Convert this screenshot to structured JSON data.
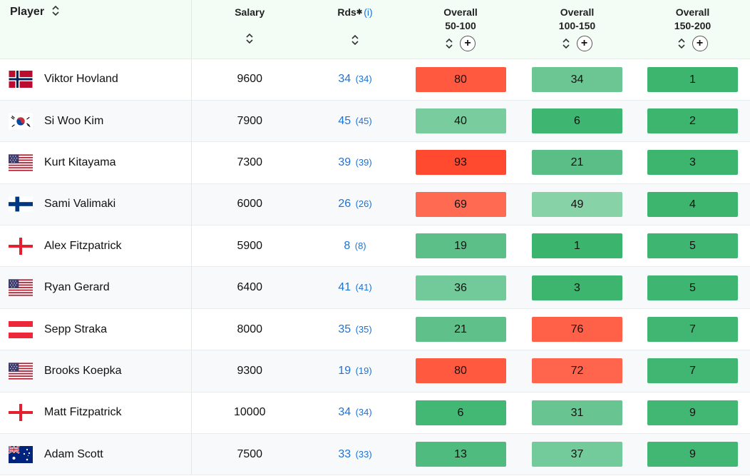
{
  "headers": {
    "player": "Player",
    "salary": "Salary",
    "rds": "Rds",
    "rds_info": "(i)",
    "overall1_line1": "Overall",
    "overall1_line2": "50-100",
    "overall2_line1": "Overall",
    "overall2_line2": "100-150",
    "overall3_line1": "Overall",
    "overall3_line2": "150-200"
  },
  "rows": [
    {
      "name": "Viktor Hovland",
      "flag": "norway-flag-icon",
      "salary": "9600",
      "rds": "34",
      "rds_total": "(34)",
      "o1": "80",
      "o2": "34",
      "o3": "1",
      "c1": "#ff5a40",
      "c2": "#6cc694",
      "c3": "#3db56f"
    },
    {
      "name": "Si Woo Kim",
      "flag": "south-korea-flag-icon",
      "salary": "7900",
      "rds": "45",
      "rds_total": "(45)",
      "o1": "40",
      "o2": "6",
      "o3": "2",
      "c1": "#78cc9d",
      "c2": "#3eb570",
      "c3": "#3db56f"
    },
    {
      "name": "Kurt Kitayama",
      "flag": "usa-flag-icon",
      "salary": "7300",
      "rds": "39",
      "rds_total": "(39)",
      "o1": "93",
      "o2": "21",
      "o3": "3",
      "c1": "#ff4a30",
      "c2": "#5abe86",
      "c3": "#3db56f"
    },
    {
      "name": "Sami Valimaki",
      "flag": "finland-flag-icon",
      "salary": "6000",
      "rds": "26",
      "rds_total": "(26)",
      "o1": "69",
      "o2": "49",
      "o3": "4",
      "c1": "#ff6a52",
      "c2": "#88d2a8",
      "c3": "#3db56f"
    },
    {
      "name": "Alex Fitzpatrick",
      "flag": "england-flag-icon",
      "salary": "5900",
      "rds": "8",
      "rds_total": "(8)",
      "o1": "19",
      "o2": "1",
      "o3": "5",
      "c1": "#5cbf88",
      "c2": "#3bb46e",
      "c3": "#3eb570"
    },
    {
      "name": "Ryan Gerard",
      "flag": "usa-flag-icon",
      "salary": "6400",
      "rds": "41",
      "rds_total": "(41)",
      "o1": "36",
      "o2": "3",
      "o3": "5",
      "c1": "#72c999",
      "c2": "#3db56f",
      "c3": "#3eb570"
    },
    {
      "name": "Sepp Straka",
      "flag": "austria-flag-icon",
      "salary": "8000",
      "rds": "35",
      "rds_total": "(35)",
      "o1": "21",
      "o2": "76",
      "o3": "7",
      "c1": "#5fc08a",
      "c2": "#ff6048",
      "c3": "#40b672"
    },
    {
      "name": "Brooks Koepka",
      "flag": "usa-flag-icon",
      "salary": "9300",
      "rds": "19",
      "rds_total": "(19)",
      "o1": "80",
      "o2": "72",
      "o3": "7",
      "c1": "#ff5a40",
      "c2": "#ff654d",
      "c3": "#40b672"
    },
    {
      "name": "Matt Fitzpatrick",
      "flag": "england-flag-icon",
      "salary": "10000",
      "rds": "34",
      "rds_total": "(34)",
      "o1": "6",
      "o2": "31",
      "o3": "9",
      "c1": "#43b774",
      "c2": "#68c592",
      "c3": "#42b773"
    },
    {
      "name": "Adam Scott",
      "flag": "australia-flag-icon",
      "salary": "7500",
      "rds": "33",
      "rds_total": "(33)",
      "o1": "13",
      "o2": "37",
      "o3": "9",
      "c1": "#4fbb7e",
      "c2": "#73ca9a",
      "c3": "#42b773"
    }
  ]
}
